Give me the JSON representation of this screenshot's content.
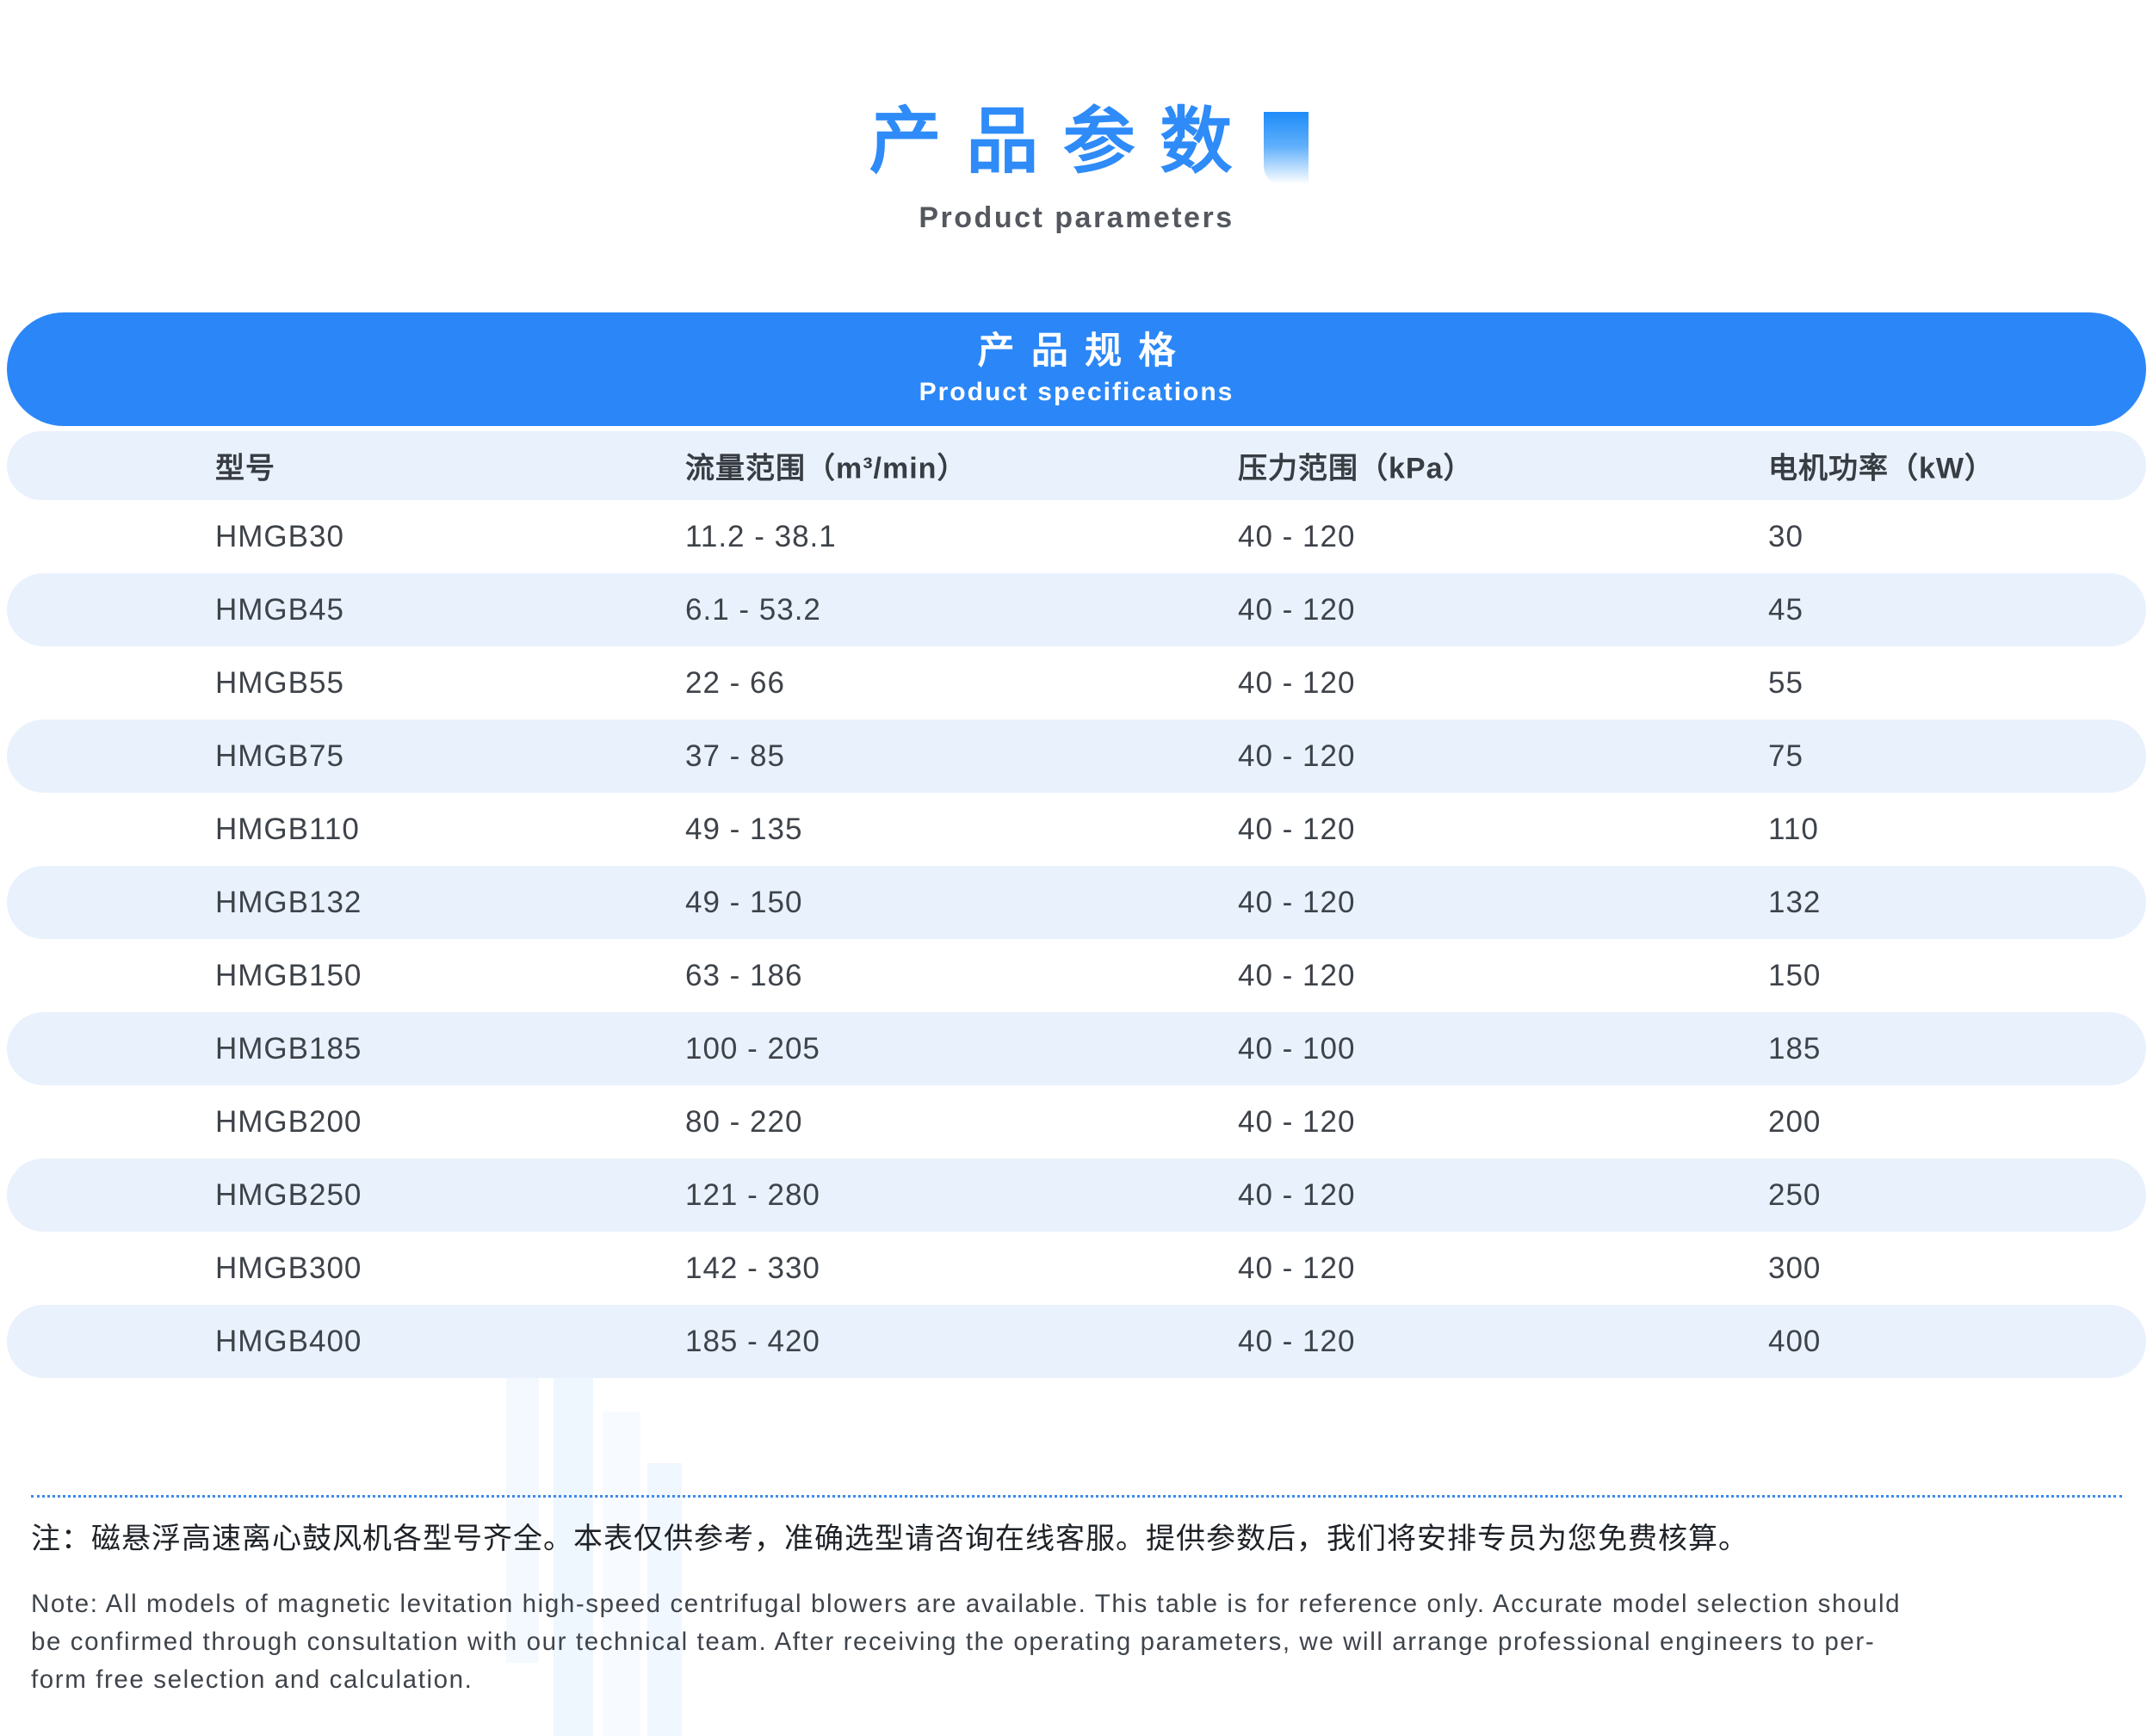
{
  "page": {
    "title_zh": "产品参数",
    "subtitle_en": "Product parameters"
  },
  "banner": {
    "title_zh": "产品规格",
    "subtitle_en": "Product specifications"
  },
  "table": {
    "columns": [
      "型号",
      "流量范围（m³/min）",
      "压力范围（kPa）",
      "电机功率（kW）"
    ],
    "rows": [
      {
        "model": "HMGB30",
        "flow": "11.2 - 38.1",
        "pressure": "40 - 120",
        "power": "30"
      },
      {
        "model": "HMGB45",
        "flow": "6.1 - 53.2",
        "pressure": "40 - 120",
        "power": "45"
      },
      {
        "model": "HMGB55",
        "flow": "22 - 66",
        "pressure": "40 - 120",
        "power": "55"
      },
      {
        "model": "HMGB75",
        "flow": "37 - 85",
        "pressure": "40 - 120",
        "power": "75"
      },
      {
        "model": "HMGB110",
        "flow": "49 - 135",
        "pressure": "40 - 120",
        "power": "110"
      },
      {
        "model": "HMGB132",
        "flow": "49 - 150",
        "pressure": "40 - 120",
        "power": "132"
      },
      {
        "model": "HMGB150",
        "flow": "63 - 186",
        "pressure": "40 - 120",
        "power": "150"
      },
      {
        "model": "HMGB185",
        "flow": "100 - 205",
        "pressure": "40 - 100",
        "power": "185"
      },
      {
        "model": "HMGB200",
        "flow": "80 - 220",
        "pressure": "40 - 120",
        "power": "200"
      },
      {
        "model": "HMGB250",
        "flow": "121 - 280",
        "pressure": "40 - 120",
        "power": "250"
      },
      {
        "model": "HMGB300",
        "flow": "142 - 330",
        "pressure": "40 - 120",
        "power": "300"
      },
      {
        "model": "HMGB400",
        "flow": "185 - 420",
        "pressure": "40 - 120",
        "power": "400"
      }
    ]
  },
  "notes": {
    "zh": "注：磁悬浮高速离心鼓风机各型号齐全。本表仅供参考，准确选型请咨询在线客服。提供参数后，我们将安排专员为您免费核算。",
    "en_lines": [
      "Note: All models of magnetic levitation high-speed centrifugal blowers are available. This table is for reference only. Accurate model selection should",
      "be confirmed through consultation with our technical team. After receiving the operating parameters, we will arrange professional engineers to per-",
      "form free selection and calculation."
    ]
  },
  "icons": {
    "title_decor": "gradient-square-icon"
  },
  "colors": {
    "accent_blue": "#2B87F7",
    "title_blue": "#2E8BF8",
    "row_alt": "#E9F1FC",
    "text_dark": "#3E434A",
    "divider_blue": "#3E8BEA"
  }
}
